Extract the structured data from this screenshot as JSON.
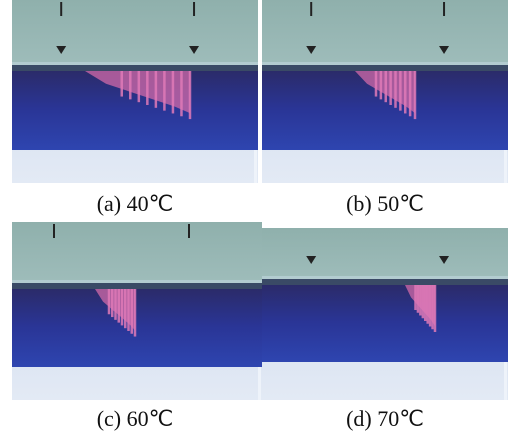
{
  "figure": {
    "panels": [
      {
        "caption": "(a) 40℃"
      },
      {
        "caption": "(b) 50℃"
      },
      {
        "caption": "(c) 60℃"
      },
      {
        "caption": "(d) 70℃"
      }
    ]
  }
}
